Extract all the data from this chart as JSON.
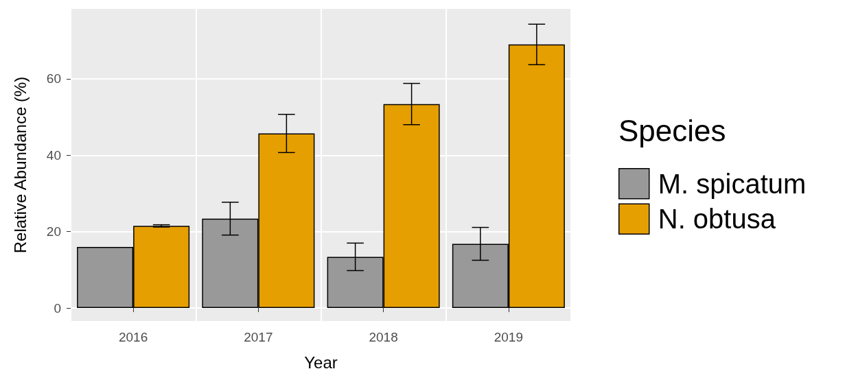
{
  "chart_data": {
    "type": "bar",
    "xlabel": "Year",
    "ylabel": "Relative Abundance (%)",
    "legend_title": "Species",
    "categories": [
      "2016",
      "2017",
      "2018",
      "2019"
    ],
    "series": [
      {
        "name": "M. spicatum",
        "color": "#999999",
        "values": [
          16.0,
          23.4,
          13.4,
          16.8
        ],
        "errors": [
          null,
          4.3,
          3.6,
          4.3
        ]
      },
      {
        "name": "N. obtusa",
        "color": "#e69f00",
        "values": [
          21.5,
          45.7,
          53.4,
          69.0
        ],
        "errors": [
          0.3,
          5.0,
          5.4,
          5.3
        ]
      }
    ],
    "ylim": [
      -3.4,
      78.3
    ],
    "yticks": [
      0,
      20,
      40,
      60
    ],
    "grid": true,
    "legend": "right"
  }
}
